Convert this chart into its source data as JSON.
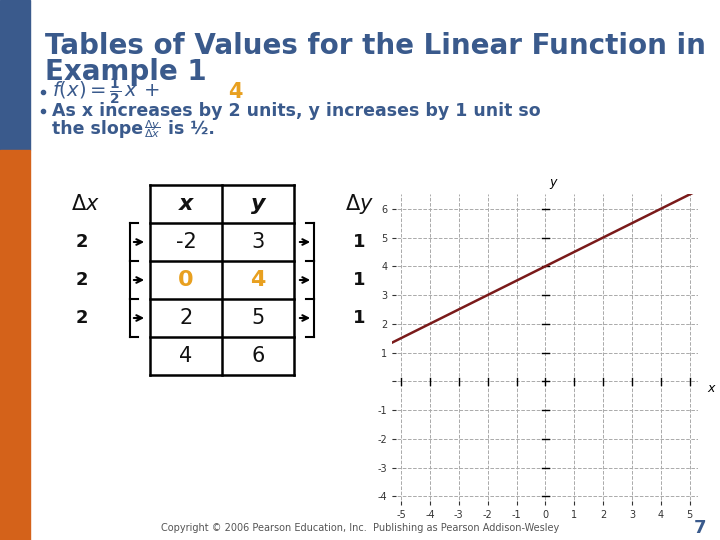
{
  "title_line1": "Tables of Values for the Linear Function in",
  "title_line2": "Example 1",
  "title_color": "#3a5a8c",
  "title_fontsize": 20,
  "bg_color": "#ffffff",
  "left_bar_top_color": "#3a5a8c",
  "left_bar_bottom_color": "#d4621a",
  "bullet_color": "#3a5a8c",
  "bullet1_color_highlight": "#e8a020",
  "table_x_vals": [
    "-2",
    "0",
    "2",
    "4"
  ],
  "table_y_vals": [
    "3",
    "4",
    "5",
    "6"
  ],
  "table_highlight_row": 1,
  "table_highlight_color": "#e8a020",
  "delta_x_vals": [
    "2",
    "2",
    "2"
  ],
  "delta_y_vals": [
    "1",
    "1",
    "1"
  ],
  "graph_xlim": [
    -5.3,
    5.3
  ],
  "graph_ylim": [
    -4.3,
    6.5
  ],
  "line_color": "#7a1a1a",
  "grid_color": "#aaaaaa",
  "axis_color": "#000000",
  "copyright_text": "Copyright © 2006 Pearson Education, Inc.  Publishing as Pearson Addison-Wesley",
  "page_number": "7"
}
